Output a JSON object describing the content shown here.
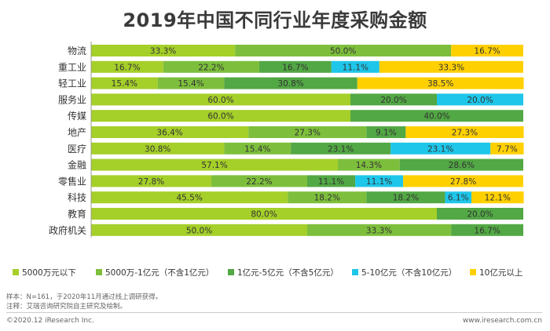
{
  "title": "2019年中国不同行业年度采购金额",
  "notes": {
    "source": "样本：N=161，于2020年11月通过线上调研获得。",
    "remark": "注释：艾瑞咨询研究院自主研究及绘制。"
  },
  "footer": {
    "copyright": "©2020.12 iResearch Inc.",
    "website": "www.iresearch.com.cn"
  },
  "colors": [
    "#a5cf29",
    "#7dbf3c",
    "#52a844",
    "#1ec6e9",
    "#ffd000"
  ],
  "chart_data": {
    "type": "bar",
    "orientation": "horizontal-stacked-100",
    "title": "2019年中国不同行业年度采购金额",
    "categories": [
      "物流",
      "重工业",
      "轻工业",
      "服务业",
      "传媒",
      "地产",
      "医疗",
      "金融",
      "零售业",
      "科技",
      "教育",
      "政府机关"
    ],
    "series": [
      {
        "name": "5000万元以下",
        "values": [
          33.3,
          16.7,
          15.4,
          60.0,
          60.0,
          36.4,
          30.8,
          57.1,
          27.8,
          45.5,
          80.0,
          50.0
        ]
      },
      {
        "name": "5000万-1亿元（不含1亿元）",
        "values": [
          50.0,
          22.2,
          15.4,
          0,
          0,
          27.3,
          15.4,
          14.3,
          22.2,
          18.2,
          0,
          33.3
        ]
      },
      {
        "name": "1亿元-5亿元（不含5亿元）",
        "values": [
          0,
          16.7,
          30.8,
          20.0,
          40.0,
          9.1,
          23.1,
          28.6,
          11.1,
          18.2,
          20.0,
          16.7
        ]
      },
      {
        "name": "5-10亿元（不含10亿元）",
        "values": [
          0,
          11.1,
          0,
          20.0,
          0,
          0,
          23.1,
          0,
          11.1,
          6.1,
          0,
          0
        ]
      },
      {
        "name": "10亿元以上",
        "values": [
          16.7,
          33.3,
          38.5,
          0,
          0,
          27.3,
          7.7,
          0,
          27.8,
          12.1,
          0,
          0
        ]
      }
    ],
    "labels": [
      [
        "33.3%",
        "50.0%",
        "",
        "",
        "16.7%"
      ],
      [
        "16.7%",
        "22.2%",
        "16.7%",
        "11.1%",
        "33.3%"
      ],
      [
        "15.4%",
        "15.4%",
        "30.8%",
        "",
        "38.5%"
      ],
      [
        "60.0%",
        "",
        "20.0%",
        "20.0%",
        ""
      ],
      [
        "60.0%",
        "",
        "40.0%",
        "",
        ""
      ],
      [
        "36.4%",
        "27.3%",
        "9.1%",
        "",
        "27.3%"
      ],
      [
        "30.8%",
        "15.4%",
        "23.1%",
        "23.1%",
        "7.7%"
      ],
      [
        "57.1%",
        "14.3%",
        "28.6%",
        "",
        ""
      ],
      [
        "27.8%",
        "22.2%",
        "11.1%",
        "11.1%",
        "27.8%"
      ],
      [
        "45.5%",
        "18.2%",
        "18.2%",
        "6.1%",
        "12.1%"
      ],
      [
        "80.0%",
        "",
        "20.0%",
        "",
        ""
      ],
      [
        "50.0%",
        "33.3%",
        "16.7%",
        "",
        ""
      ]
    ],
    "xlim": [
      0,
      100
    ],
    "legend_position": "bottom",
    "grid": false
  }
}
